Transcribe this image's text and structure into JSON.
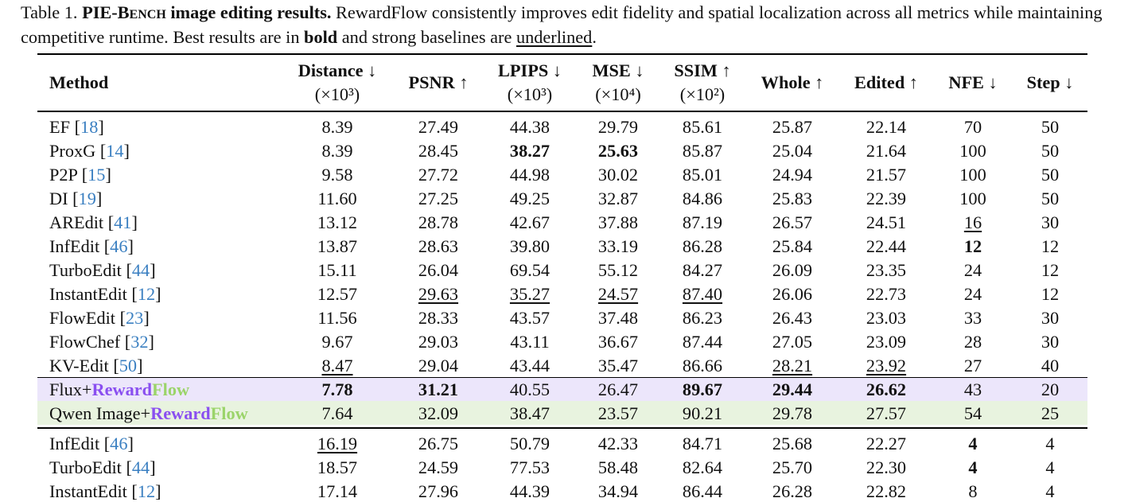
{
  "caption": [
    {
      "t": "Table 1. "
    },
    {
      "t": "PIE-Bench",
      "bold": true,
      "smallcaps": true
    },
    {
      "t": " image editing results.",
      "bold": true
    },
    {
      "t": " RewardFlow consistently improves edit fidelity and spatial localization across all metrics while maintaining competitive runtime. Best results are in "
    },
    {
      "t": "bold",
      "bold": true
    },
    {
      "t": " and strong baselines are "
    },
    {
      "t": "underlined",
      "underline": true
    },
    {
      "t": "."
    }
  ],
  "table": {
    "header": [
      {
        "name": "Method"
      },
      {
        "name": "Distance ↓",
        "unit": "(×10³)"
      },
      {
        "name": "PSNR ↑"
      },
      {
        "name": "LPIPS ↓",
        "unit": "(×10³)"
      },
      {
        "name": "MSE ↓",
        "unit": "(×10⁴)"
      },
      {
        "name": "SSIM ↑",
        "unit": "(×10²)"
      },
      {
        "name": "Whole ↑"
      },
      {
        "name": "Edited ↑"
      },
      {
        "name": "NFE ↓"
      },
      {
        "name": "Step ↓"
      }
    ],
    "sections": [
      {
        "rows": [
          {
            "method": [
              {
                "t": "EF "
              },
              {
                "t": "["
              },
              {
                "t": "18",
                "color": "#3a7fc1"
              },
              {
                "t": "]"
              }
            ],
            "cells": [
              "8.39",
              "27.49",
              "44.38",
              "29.79",
              "85.61",
              "25.87",
              "22.14",
              "70",
              "50"
            ]
          },
          {
            "method": [
              {
                "t": "ProxG "
              },
              {
                "t": "["
              },
              {
                "t": "14",
                "color": "#3a7fc1"
              },
              {
                "t": "]"
              }
            ],
            "cells": [
              "8.39",
              "28.45",
              "38.27",
              "25.63",
              "85.87",
              "25.04",
              "21.64",
              "100",
              "50"
            ],
            "bold": [
              2,
              3
            ]
          },
          {
            "method": [
              {
                "t": "P2P "
              },
              {
                "t": "["
              },
              {
                "t": "15",
                "color": "#3a7fc1"
              },
              {
                "t": "]"
              }
            ],
            "cells": [
              "9.58",
              "27.72",
              "44.98",
              "30.02",
              "85.01",
              "24.94",
              "21.57",
              "100",
              "50"
            ]
          },
          {
            "method": [
              {
                "t": "DI "
              },
              {
                "t": "["
              },
              {
                "t": "19",
                "color": "#3a7fc1"
              },
              {
                "t": "]"
              }
            ],
            "cells": [
              "11.60",
              "27.25",
              "49.25",
              "32.87",
              "84.86",
              "25.83",
              "22.39",
              "100",
              "50"
            ]
          },
          {
            "method": [
              {
                "t": "AREdit "
              },
              {
                "t": "["
              },
              {
                "t": "41",
                "color": "#3a7fc1"
              },
              {
                "t": "]"
              }
            ],
            "cells": [
              "13.12",
              "28.78",
              "42.67",
              "37.88",
              "87.19",
              "26.57",
              "24.51",
              "16",
              "30"
            ],
            "underline": [
              7
            ]
          },
          {
            "method": [
              {
                "t": "InfEdit "
              },
              {
                "t": "["
              },
              {
                "t": "46",
                "color": "#3a7fc1"
              },
              {
                "t": "]"
              }
            ],
            "cells": [
              "13.87",
              "28.63",
              "39.80",
              "33.19",
              "86.28",
              "25.84",
              "22.44",
              "12",
              "12"
            ],
            "bold": [
              7
            ]
          },
          {
            "method": [
              {
                "t": "TurboEdit "
              },
              {
                "t": "["
              },
              {
                "t": "44",
                "color": "#3a7fc1"
              },
              {
                "t": "]"
              }
            ],
            "cells": [
              "15.11",
              "26.04",
              "69.54",
              "55.12",
              "84.27",
              "26.09",
              "23.35",
              "24",
              "12"
            ]
          },
          {
            "method": [
              {
                "t": "InstantEdit "
              },
              {
                "t": "["
              },
              {
                "t": "12",
                "color": "#3a7fc1"
              },
              {
                "t": "]"
              }
            ],
            "cells": [
              "12.57",
              "29.63",
              "35.27",
              "24.57",
              "87.40",
              "26.06",
              "22.73",
              "24",
              "12"
            ],
            "underline": [
              1,
              2,
              3,
              4
            ]
          },
          {
            "method": [
              {
                "t": "FlowEdit "
              },
              {
                "t": "["
              },
              {
                "t": "23",
                "color": "#3a7fc1"
              },
              {
                "t": "]"
              }
            ],
            "cells": [
              "11.56",
              "28.33",
              "43.57",
              "37.48",
              "86.23",
              "26.43",
              "23.03",
              "33",
              "30"
            ]
          },
          {
            "method": [
              {
                "t": "FlowChef "
              },
              {
                "t": "["
              },
              {
                "t": "32",
                "color": "#3a7fc1"
              },
              {
                "t": "]"
              }
            ],
            "cells": [
              "9.67",
              "29.03",
              "43.11",
              "36.67",
              "87.44",
              "27.05",
              "23.09",
              "28",
              "30"
            ]
          },
          {
            "method": [
              {
                "t": "KV-Edit "
              },
              {
                "t": "["
              },
              {
                "t": "50",
                "color": "#3a7fc1"
              },
              {
                "t": "]"
              }
            ],
            "cells": [
              "8.47",
              "29.04",
              "43.44",
              "35.47",
              "86.66",
              "28.21",
              "23.92",
              "27",
              "40"
            ],
            "underline": [
              0,
              5,
              6
            ]
          },
          {
            "method": [
              {
                "t": "Flux+"
              },
              {
                "t": "Reward",
                "color": "#8a4ff0",
                "bold": true
              },
              {
                "t": "Flow",
                "color": "#9bd46a",
                "bold": true
              }
            ],
            "cells": [
              "7.78",
              "31.21",
              "40.55",
              "26.47",
              "89.67",
              "29.44",
              "26.62",
              "43",
              "20"
            ],
            "bold": [
              0,
              1,
              4,
              5,
              6
            ],
            "background": "#ece6fb"
          },
          {
            "method": [
              {
                "t": "Qwen Image+"
              },
              {
                "t": "Reward",
                "color": "#8a4ff0",
                "bold": true
              },
              {
                "t": "Flow",
                "color": "#9bd46a",
                "bold": true
              }
            ],
            "cells": [
              "7.64",
              "32.09",
              "38.47",
              "23.57",
              "90.21",
              "29.78",
              "27.57",
              "54",
              "25"
            ],
            "background": "#e8f3df"
          }
        ]
      },
      {
        "rows": [
          {
            "method": [
              {
                "t": "InfEdit "
              },
              {
                "t": "["
              },
              {
                "t": "46",
                "color": "#3a7fc1"
              },
              {
                "t": "]"
              }
            ],
            "cells": [
              "16.19",
              "26.75",
              "50.79",
              "42.33",
              "84.71",
              "25.68",
              "22.27",
              "4",
              "4"
            ],
            "underline": [
              0
            ],
            "bold": [
              7
            ]
          },
          {
            "method": [
              {
                "t": "TurboEdit "
              },
              {
                "t": "["
              },
              {
                "t": "44",
                "color": "#3a7fc1"
              },
              {
                "t": "]"
              }
            ],
            "cells": [
              "18.57",
              "24.59",
              "77.53",
              "58.48",
              "82.64",
              "25.70",
              "22.30",
              "4",
              "4"
            ],
            "bold": [
              7
            ]
          },
          {
            "method": [
              {
                "t": "InstantEdit "
              },
              {
                "t": "["
              },
              {
                "t": "12",
                "color": "#3a7fc1"
              },
              {
                "t": "]"
              }
            ],
            "cells": [
              "17.14",
              "27.96",
              "44.39",
              "34.94",
              "86.44",
              "26.28",
              "22.82",
              "8",
              "4"
            ]
          }
        ]
      }
    ]
  }
}
